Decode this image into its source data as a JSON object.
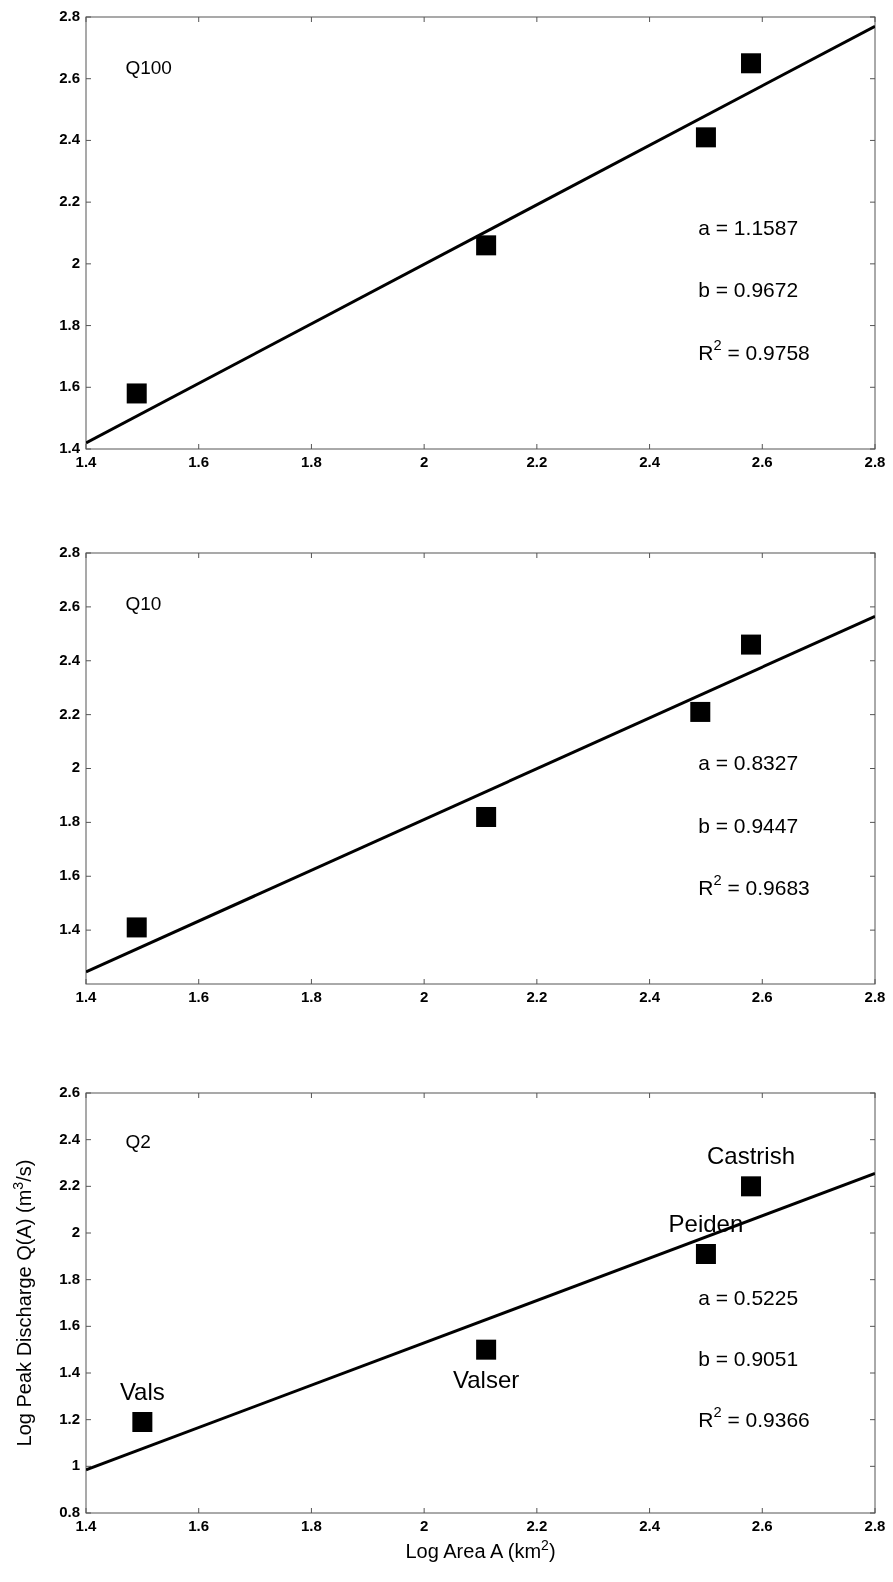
{
  "chart_data": [
    {
      "type": "scatter",
      "marker": "square",
      "xlim": [
        1.4,
        2.8
      ],
      "ylim": [
        1.4,
        2.8
      ],
      "xticks": [
        1.4,
        1.6,
        1.8,
        2,
        2.2,
        2.4,
        2.6,
        2.8
      ],
      "yticks": [
        1.4,
        1.6,
        1.8,
        2,
        2.2,
        2.4,
        2.6,
        2.8
      ],
      "grid": false,
      "annotations": [
        "Q100",
        "a = 1.1587",
        "b = 0.9672",
        "R$^{2}$ = 0.9758"
      ],
      "series": [
        {
          "color": "#000000",
          "x": [
            1.49,
            2.11,
            2.5,
            2.58
          ],
          "values": [
            1.58,
            2.06,
            2.41,
            2.65
          ]
        },
        {
          "type": "line",
          "color": "#000000",
          "marker": "none",
          "x": [
            1.4,
            2.8
          ],
          "values": [
            1.42,
            2.77
          ]
        }
      ]
    },
    {
      "type": "scatter",
      "marker": "square",
      "xlim": [
        1.4,
        2.8
      ],
      "ylim": [
        1.2,
        2.8
      ],
      "xticks": [
        1.4,
        1.6,
        1.8,
        2,
        2.2,
        2.4,
        2.6,
        2.8
      ],
      "yticks": [
        1.4,
        1.6,
        1.8,
        2,
        2.2,
        2.4,
        2.6,
        2.8
      ],
      "grid": false,
      "annotations": [
        "Q10",
        "a = 0.8327",
        "b = 0.9447",
        "R$^{2}$ = 0.9683"
      ],
      "series": [
        {
          "color": "#000000",
          "x": [
            1.49,
            2.11,
            2.49,
            2.58
          ],
          "values": [
            1.41,
            1.82,
            2.21,
            2.46
          ]
        },
        {
          "type": "line",
          "color": "#000000",
          "marker": "none",
          "x": [
            1.4,
            2.8
          ],
          "values": [
            1.245,
            2.565
          ]
        }
      ]
    },
    {
      "type": "scatter",
      "marker": "square",
      "xlabel": "Log Area A (km$^{2}$)",
      "ylabel": "Log Peak Discharge Q(A) (m$^{3}$/s)",
      "xlim": [
        1.4,
        2.8
      ],
      "ylim": [
        0.8,
        2.6
      ],
      "xticks": [
        1.4,
        1.6,
        1.8,
        2,
        2.2,
        2.4,
        2.6,
        2.8
      ],
      "yticks": [
        0.8,
        1,
        1.2,
        1.4,
        1.6,
        1.8,
        2,
        2.2,
        2.4,
        2.6
      ],
      "grid": false,
      "annotations": [
        "Q2",
        "a = 0.5225",
        "b = 0.9051",
        "R$^{2}$ = 0.9366",
        {
          "text": "Vals",
          "x": 1.5,
          "y": 1.19
        },
        {
          "text": "Valser",
          "x": 2.11,
          "y": 1.5
        },
        {
          "text": "Peiden",
          "x": 2.5,
          "y": 1.91
        },
        {
          "text": "Castrish",
          "x": 2.58,
          "y": 2.2
        }
      ],
      "series": [
        {
          "color": "#000000",
          "x": [
            1.5,
            2.11,
            2.5,
            2.58
          ],
          "values": [
            1.19,
            1.5,
            1.91,
            2.2
          ]
        },
        {
          "type": "line",
          "color": "#000000",
          "marker": "none",
          "x": [
            1.4,
            2.8
          ],
          "values": [
            0.985,
            2.255
          ]
        }
      ]
    }
  ]
}
